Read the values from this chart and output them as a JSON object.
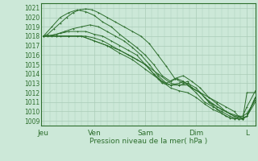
{
  "xlabel": "Pression niveau de la mer( hPa )",
  "ylim": [
    1008.5,
    1021.5
  ],
  "yticks": [
    1009,
    1010,
    1011,
    1012,
    1013,
    1014,
    1015,
    1016,
    1017,
    1018,
    1019,
    1020,
    1021
  ],
  "xtick_labels": [
    "Jeu",
    "Ven",
    "Sam",
    "Dim",
    "L"
  ],
  "xtick_positions": [
    0,
    24,
    48,
    72,
    96
  ],
  "xlim": [
    -1,
    100
  ],
  "background_color": "#cce8d8",
  "grid_color": "#aaccb8",
  "line_color": "#2d6e2d",
  "lines": [
    {
      "points": [
        [
          0,
          1018
        ],
        [
          2,
          1018.2
        ],
        [
          5,
          1018.8
        ],
        [
          8,
          1019.4
        ],
        [
          11,
          1020.0
        ],
        [
          14,
          1020.5
        ],
        [
          17,
          1020.8
        ],
        [
          20,
          1020.9
        ],
        [
          23,
          1020.8
        ],
        [
          26,
          1020.5
        ],
        [
          30,
          1020.0
        ],
        [
          34,
          1019.5
        ],
        [
          38,
          1019.0
        ],
        [
          42,
          1018.5
        ],
        [
          46,
          1018.0
        ],
        [
          50,
          1017.2
        ],
        [
          54,
          1016.0
        ],
        [
          58,
          1014.8
        ],
        [
          62,
          1013.5
        ],
        [
          66,
          1013.0
        ],
        [
          68,
          1013.2
        ],
        [
          70,
          1012.5
        ],
        [
          74,
          1012.0
        ],
        [
          78,
          1011.5
        ],
        [
          82,
          1011.0
        ],
        [
          86,
          1010.5
        ],
        [
          90,
          1010.0
        ],
        [
          92,
          1009.5
        ],
        [
          94,
          1009.2
        ],
        [
          96,
          1012.0
        ],
        [
          100,
          1012.0
        ]
      ]
    },
    {
      "points": [
        [
          0,
          1018
        ],
        [
          4,
          1019.0
        ],
        [
          8,
          1020.0
        ],
        [
          12,
          1020.5
        ],
        [
          16,
          1020.8
        ],
        [
          20,
          1020.6
        ],
        [
          24,
          1020.2
        ],
        [
          28,
          1019.5
        ],
        [
          32,
          1019.0
        ],
        [
          36,
          1018.2
        ],
        [
          40,
          1017.5
        ],
        [
          44,
          1016.8
        ],
        [
          48,
          1016.0
        ],
        [
          52,
          1015.0
        ],
        [
          56,
          1013.8
        ],
        [
          60,
          1013.2
        ],
        [
          63,
          1013.5
        ],
        [
          66,
          1013.2
        ],
        [
          70,
          1012.5
        ],
        [
          74,
          1012.0
        ],
        [
          78,
          1011.0
        ],
        [
          82,
          1010.2
        ],
        [
          86,
          1009.5
        ],
        [
          90,
          1009.2
        ],
        [
          94,
          1009.5
        ],
        [
          96,
          1010.5
        ],
        [
          100,
          1012.2
        ]
      ]
    },
    {
      "points": [
        [
          0,
          1018
        ],
        [
          2,
          1018.0
        ],
        [
          6,
          1018.2
        ],
        [
          10,
          1018.5
        ],
        [
          14,
          1018.8
        ],
        [
          18,
          1019.0
        ],
        [
          22,
          1019.2
        ],
        [
          26,
          1019.0
        ],
        [
          30,
          1018.5
        ],
        [
          34,
          1018.0
        ],
        [
          38,
          1017.5
        ],
        [
          42,
          1016.8
        ],
        [
          46,
          1016.0
        ],
        [
          50,
          1015.0
        ],
        [
          54,
          1013.8
        ],
        [
          58,
          1013.0
        ],
        [
          62,
          1013.5
        ],
        [
          66,
          1013.8
        ],
        [
          70,
          1013.2
        ],
        [
          74,
          1012.5
        ],
        [
          78,
          1011.5
        ],
        [
          82,
          1010.8
        ],
        [
          86,
          1010.0
        ],
        [
          90,
          1009.5
        ],
        [
          94,
          1009.3
        ],
        [
          96,
          1009.5
        ],
        [
          100,
          1011.5
        ]
      ]
    },
    {
      "points": [
        [
          0,
          1018
        ],
        [
          4,
          1018.1
        ],
        [
          8,
          1018.3
        ],
        [
          12,
          1018.5
        ],
        [
          16,
          1018.5
        ],
        [
          20,
          1018.5
        ],
        [
          24,
          1018.2
        ],
        [
          28,
          1018.0
        ],
        [
          32,
          1017.5
        ],
        [
          36,
          1017.0
        ],
        [
          40,
          1016.5
        ],
        [
          44,
          1016.0
        ],
        [
          48,
          1015.0
        ],
        [
          52,
          1014.0
        ],
        [
          56,
          1013.0
        ],
        [
          60,
          1012.8
        ],
        [
          64,
          1013.0
        ],
        [
          66,
          1013.2
        ],
        [
          70,
          1012.5
        ],
        [
          74,
          1012.0
        ],
        [
          78,
          1011.0
        ],
        [
          82,
          1010.5
        ],
        [
          86,
          1010.0
        ],
        [
          90,
          1009.5
        ],
        [
          94,
          1009.3
        ],
        [
          96,
          1009.5
        ],
        [
          100,
          1011.5
        ]
      ]
    },
    {
      "points": [
        [
          0,
          1018
        ],
        [
          4,
          1018.0
        ],
        [
          8,
          1018.0
        ],
        [
          12,
          1018.0
        ],
        [
          16,
          1018.0
        ],
        [
          20,
          1018.0
        ],
        [
          24,
          1017.8
        ],
        [
          28,
          1017.5
        ],
        [
          32,
          1017.0
        ],
        [
          36,
          1016.5
        ],
        [
          40,
          1016.0
        ],
        [
          44,
          1015.5
        ],
        [
          48,
          1015.0
        ],
        [
          52,
          1014.0
        ],
        [
          56,
          1013.2
        ],
        [
          60,
          1012.8
        ],
        [
          64,
          1012.8
        ],
        [
          68,
          1013.0
        ],
        [
          72,
          1012.5
        ],
        [
          76,
          1011.5
        ],
        [
          80,
          1010.8
        ],
        [
          84,
          1010.2
        ],
        [
          88,
          1009.8
        ],
        [
          92,
          1009.5
        ],
        [
          94,
          1009.5
        ],
        [
          96,
          1009.8
        ],
        [
          100,
          1011.2
        ]
      ]
    },
    {
      "points": [
        [
          0,
          1018
        ],
        [
          6,
          1018.0
        ],
        [
          12,
          1018.0
        ],
        [
          18,
          1018.0
        ],
        [
          24,
          1017.5
        ],
        [
          30,
          1017.0
        ],
        [
          36,
          1016.5
        ],
        [
          42,
          1015.8
        ],
        [
          48,
          1015.0
        ],
        [
          54,
          1014.0
        ],
        [
          60,
          1013.0
        ],
        [
          64,
          1012.8
        ],
        [
          68,
          1012.8
        ],
        [
          72,
          1012.0
        ],
        [
          76,
          1011.0
        ],
        [
          80,
          1010.5
        ],
        [
          84,
          1010.0
        ],
        [
          88,
          1009.5
        ],
        [
          92,
          1009.2
        ],
        [
          94,
          1009.2
        ],
        [
          96,
          1009.5
        ],
        [
          100,
          1011.0
        ]
      ]
    },
    {
      "points": [
        [
          0,
          1018
        ],
        [
          6,
          1018.0
        ],
        [
          12,
          1018.0
        ],
        [
          18,
          1018.0
        ],
        [
          24,
          1017.5
        ],
        [
          30,
          1017.0
        ],
        [
          36,
          1016.2
        ],
        [
          42,
          1015.5
        ],
        [
          48,
          1014.5
        ],
        [
          54,
          1013.5
        ],
        [
          60,
          1012.5
        ],
        [
          64,
          1012.2
        ],
        [
          68,
          1012.0
        ],
        [
          72,
          1011.5
        ],
        [
          76,
          1010.8
        ],
        [
          80,
          1010.2
        ],
        [
          84,
          1009.8
        ],
        [
          88,
          1009.3
        ],
        [
          92,
          1009.2
        ],
        [
          94,
          1009.2
        ],
        [
          96,
          1009.5
        ],
        [
          100,
          1011.5
        ]
      ]
    }
  ]
}
